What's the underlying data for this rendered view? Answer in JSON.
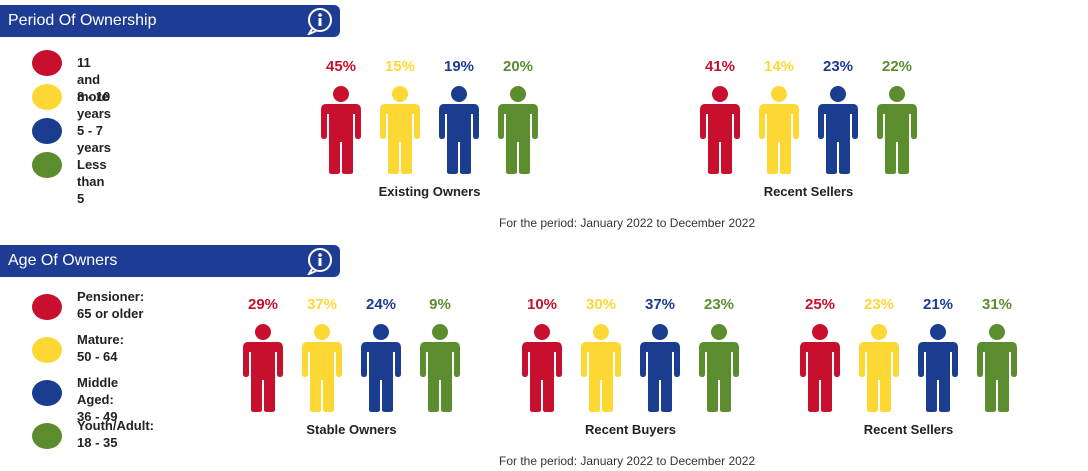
{
  "colors": {
    "header_bg": "#1f3c94",
    "red": "#c8102e",
    "yellow": "#fdd835",
    "blue": "#1b3d8f",
    "green": "#5b8c2e"
  },
  "sections": [
    {
      "title": "Period Of Ownership",
      "info_icon": "info-icon",
      "legend": [
        {
          "label": "11 and more",
          "color": "#c8102e"
        },
        {
          "label": "8 - 10 years",
          "color": "#fdd835"
        },
        {
          "label": "5 - 7 years",
          "color": "#1b3d8f"
        },
        {
          "label": "Less than 5",
          "color": "#5b8c2e"
        }
      ],
      "period_note": "For the period: January 2022 to December 2022"
    },
    {
      "title": "Age Of Owners",
      "info_icon": "info-icon",
      "legend": [
        {
          "label": "Pensioner:\n65 or older",
          "color": "#c8102e"
        },
        {
          "label": "Mature:\n50 - 64",
          "color": "#fdd835"
        },
        {
          "label": "Middle Aged:\n36 - 49",
          "color": "#1b3d8f"
        },
        {
          "label": "Youth/Adult:\n18 - 35",
          "color": "#5b8c2e"
        }
      ],
      "period_note": "For the period: January 2022 to December 2022"
    }
  ],
  "chart_data": [
    {
      "type": "bar",
      "title": "Period Of Ownership",
      "categories": [
        "Existing Owners",
        "Recent Sellers"
      ],
      "series": [
        {
          "name": "11 and more",
          "values": [
            45,
            41
          ]
        },
        {
          "name": "8 - 10 years",
          "values": [
            15,
            14
          ]
        },
        {
          "name": "5 - 7 years",
          "values": [
            19,
            23
          ]
        },
        {
          "name": "Less than 5",
          "values": [
            20,
            22
          ]
        }
      ],
      "unit": "%"
    },
    {
      "type": "bar",
      "title": "Age Of Owners",
      "categories": [
        "Stable Owners",
        "Recent Buyers",
        "Recent Sellers"
      ],
      "series": [
        {
          "name": "Pensioner: 65 or older",
          "values": [
            29,
            10,
            25
          ]
        },
        {
          "name": "Mature: 50 - 64",
          "values": [
            37,
            30,
            23
          ]
        },
        {
          "name": "Middle Aged: 36 - 49",
          "values": [
            24,
            37,
            21
          ]
        },
        {
          "name": "Youth/Adult: 18 - 35",
          "values": [
            9,
            23,
            31
          ]
        }
      ],
      "unit": "%"
    }
  ]
}
